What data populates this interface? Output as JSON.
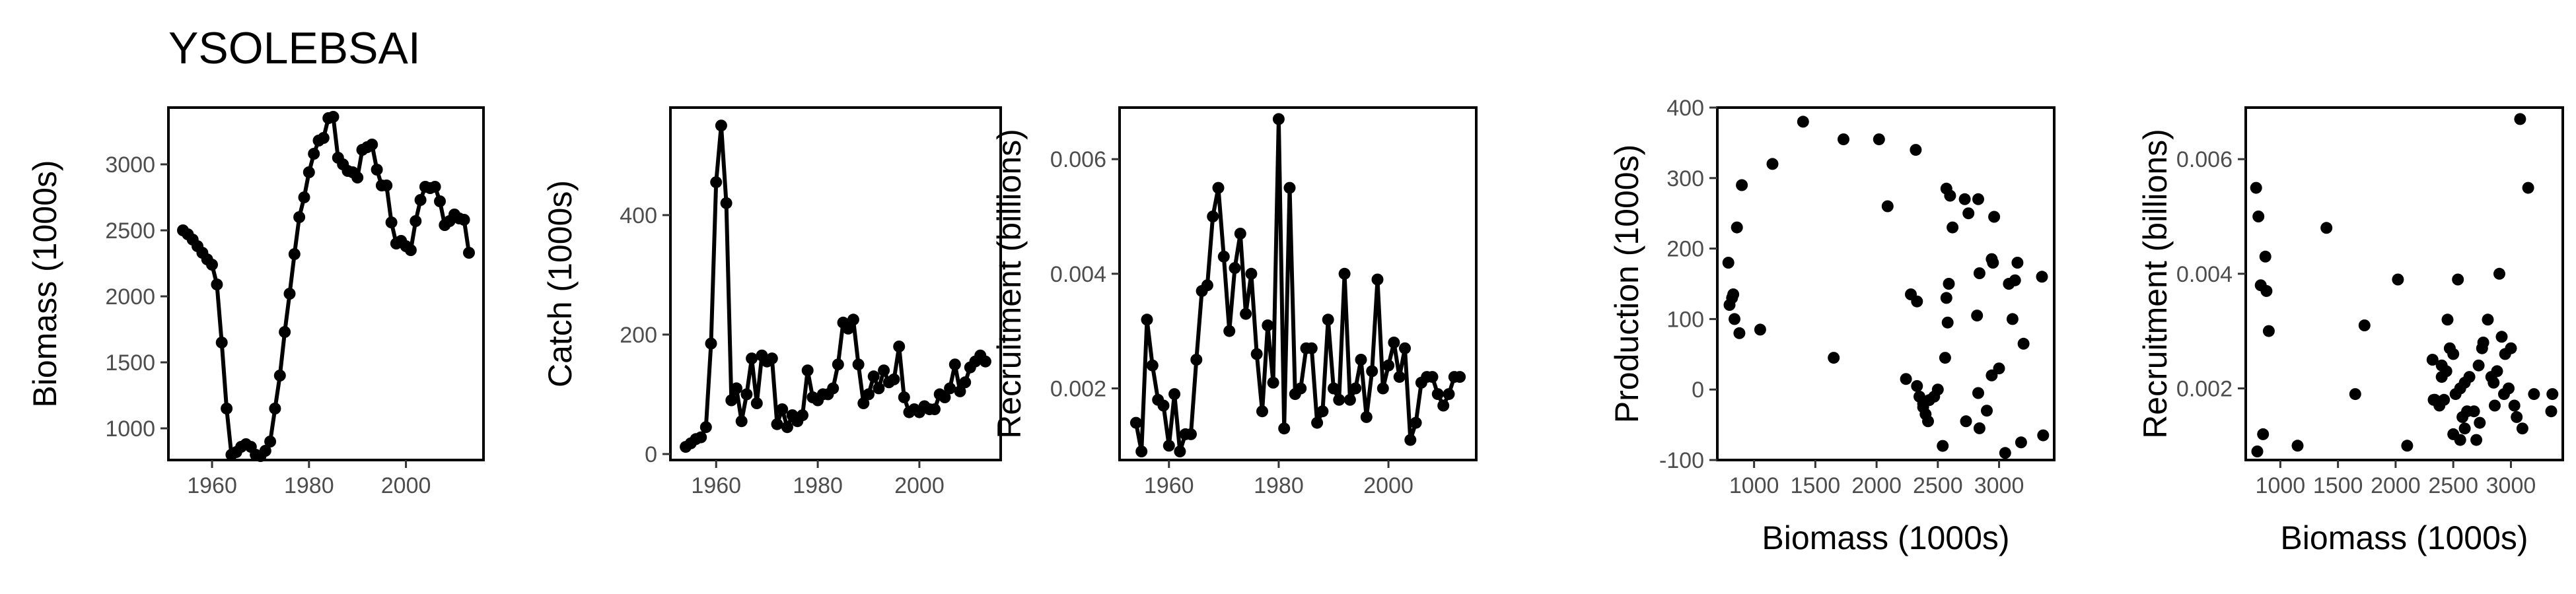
{
  "title": "YSOLEBSAI",
  "chart_data": [
    {
      "type": "line",
      "ylabel": "Biomass (1000s)",
      "xlabel": "",
      "xlim": [
        1951,
        2016
      ],
      "ylim": [
        760,
        3430
      ],
      "xticks": [
        1960,
        1980,
        2000
      ],
      "yticks": [
        1000,
        1500,
        2000,
        2500,
        3000
      ],
      "xticklabels": [
        "1960",
        "1980",
        "2000"
      ],
      "yticklabels": [
        "1000",
        "1500",
        "2000",
        "2500",
        "3000"
      ],
      "x": [
        1954,
        1955,
        1956,
        1957,
        1958,
        1959,
        1960,
        1961,
        1962,
        1963,
        1964,
        1965,
        1966,
        1967,
        1968,
        1969,
        1970,
        1971,
        1972,
        1973,
        1974,
        1975,
        1976,
        1977,
        1978,
        1979,
        1980,
        1981,
        1982,
        1983,
        1984,
        1985,
        1986,
        1987,
        1988,
        1989,
        1990,
        1991,
        1992,
        1993,
        1994,
        1995,
        1996,
        1997,
        1998,
        1999,
        2000,
        2001,
        2002,
        2003,
        2004,
        2005,
        2006,
        2007,
        2008,
        2009,
        2010,
        2011,
        2012,
        2013
      ],
      "y": [
        2500,
        2470,
        2430,
        2380,
        2330,
        2280,
        2240,
        2090,
        1650,
        1150,
        800,
        820,
        860,
        880,
        860,
        800,
        790,
        830,
        900,
        1150,
        1400,
        1730,
        2020,
        2320,
        2600,
        2750,
        2940,
        3080,
        3180,
        3200,
        3350,
        3360,
        3050,
        3000,
        2950,
        2940,
        2900,
        3110,
        3130,
        3150,
        2960,
        2840,
        2840,
        2560,
        2400,
        2420,
        2380,
        2350,
        2570,
        2730,
        2830,
        2820,
        2830,
        2720,
        2540,
        2570,
        2620,
        2590,
        2580,
        2330
      ]
    },
    {
      "type": "line",
      "ylabel": "Catch (1000s)",
      "xlabel": "",
      "xlim": [
        1951,
        2016
      ],
      "ylim": [
        -10,
        580
      ],
      "xticks": [
        1960,
        1980,
        2000
      ],
      "yticks": [
        0,
        200,
        400
      ],
      "xticklabels": [
        "1960",
        "1980",
        "2000"
      ],
      "yticklabels": [
        "0",
        "200",
        "400"
      ],
      "x": [
        1954,
        1955,
        1956,
        1957,
        1958,
        1959,
        1960,
        1961,
        1962,
        1963,
        1964,
        1965,
        1966,
        1967,
        1968,
        1969,
        1970,
        1971,
        1972,
        1973,
        1974,
        1975,
        1976,
        1977,
        1978,
        1979,
        1980,
        1981,
        1982,
        1983,
        1984,
        1985,
        1986,
        1987,
        1988,
        1989,
        1990,
        1991,
        1992,
        1993,
        1994,
        1995,
        1996,
        1997,
        1998,
        1999,
        2000,
        2001,
        2002,
        2003,
        2004,
        2005,
        2006,
        2007,
        2008,
        2009,
        2010,
        2011,
        2012,
        2013
      ],
      "y": [
        12,
        18,
        25,
        28,
        45,
        185,
        455,
        550,
        420,
        90,
        110,
        55,
        100,
        160,
        85,
        165,
        155,
        160,
        50,
        75,
        45,
        65,
        55,
        65,
        140,
        95,
        90,
        100,
        100,
        110,
        150,
        220,
        210,
        225,
        150,
        85,
        100,
        130,
        110,
        140,
        120,
        125,
        180,
        95,
        70,
        75,
        70,
        80,
        75,
        75,
        100,
        95,
        110,
        150,
        105,
        120,
        145,
        155,
        165,
        155
      ]
    },
    {
      "type": "line",
      "ylabel": "Recruitment (billions)",
      "xlabel": "",
      "xlim": [
        1951,
        2016
      ],
      "ylim": [
        0.00075,
        0.0069
      ],
      "xticks": [
        1960,
        1980,
        2000
      ],
      "yticks": [
        0.002,
        0.004,
        0.006
      ],
      "xticklabels": [
        "1960",
        "1980",
        "2000"
      ],
      "yticklabels": [
        "0.002",
        "0.004",
        "0.006"
      ],
      "x": [
        1954,
        1955,
        1956,
        1957,
        1958,
        1959,
        1960,
        1961,
        1962,
        1963,
        1964,
        1965,
        1966,
        1967,
        1968,
        1969,
        1970,
        1971,
        1972,
        1973,
        1974,
        1975,
        1976,
        1977,
        1978,
        1979,
        1980,
        1981,
        1982,
        1983,
        1984,
        1985,
        1986,
        1987,
        1988,
        1989,
        1990,
        1991,
        1992,
        1993,
        1994,
        1995,
        1996,
        1997,
        1998,
        1999,
        2000,
        2001,
        2002,
        2003,
        2004,
        2005,
        2006,
        2007,
        2008,
        2009,
        2010,
        2011,
        2012,
        2013
      ],
      "y": [
        0.0014,
        0.0009,
        0.0032,
        0.0024,
        0.0018,
        0.0017,
        0.001,
        0.0019,
        0.0009,
        0.0012,
        0.0012,
        0.0025,
        0.0037,
        0.0038,
        0.005,
        0.0055,
        0.0043,
        0.003,
        0.0041,
        0.0047,
        0.0033,
        0.004,
        0.0026,
        0.0016,
        0.0031,
        0.0021,
        0.0067,
        0.0013,
        0.0055,
        0.0019,
        0.002,
        0.0027,
        0.0027,
        0.0014,
        0.0016,
        0.0032,
        0.002,
        0.0018,
        0.004,
        0.0018,
        0.002,
        0.0025,
        0.0015,
        0.0023,
        0.0039,
        0.002,
        0.0024,
        0.0028,
        0.0022,
        0.0027,
        0.0011,
        0.0014,
        0.0021,
        0.0022,
        0.0022,
        0.0019,
        0.0017,
        0.0019,
        0.0022,
        0.0022
      ]
    },
    {
      "type": "scatter",
      "ylabel": "Production (1000s)",
      "xlabel": "Biomass (1000s)",
      "xlim": [
        700,
        3450
      ],
      "ylim": [
        -100,
        400
      ],
      "xticks": [
        1000,
        1500,
        2000,
        2500,
        3000
      ],
      "yticks": [
        -100,
        0,
        100,
        200,
        300,
        400
      ],
      "xticklabels": [
        "1000",
        "1500",
        "2000",
        "2500",
        "3000"
      ],
      "yticklabels": [
        "-100",
        "0",
        "100",
        "200",
        "300",
        "400"
      ],
      "x": [
        790,
        800,
        820,
        830,
        840,
        860,
        880,
        900,
        1050,
        1150,
        1400,
        1650,
        1730,
        2020,
        2320,
        2600,
        2750,
        2940,
        3080,
        3180,
        3200,
        3350,
        3360,
        3050,
        3000,
        2950,
        2940,
        2900,
        3110,
        3130,
        3150,
        2960,
        2840,
        2840,
        2560,
        2400,
        2420,
        2380,
        2350,
        2570,
        2730,
        2830,
        2820,
        2830,
        2720,
        2540,
        2570,
        2620,
        2590,
        2580,
        2330,
        2500,
        2470,
        2430,
        2380,
        2330,
        2280,
        2240,
        2090
      ],
      "y": [
        180,
        120,
        130,
        135,
        100,
        230,
        80,
        290,
        85,
        320,
        380,
        45,
        355,
        355,
        340,
        275,
        250,
        185,
        150,
        -75,
        65,
        160,
        -65,
        -90,
        30,
        180,
        20,
        -30,
        100,
        155,
        180,
        245,
        -55,
        165,
        45,
        -35,
        -45,
        -20,
        -10,
        130,
        -45,
        -5,
        105,
        270,
        270,
        -80,
        285,
        230,
        150,
        95,
        5,
        0,
        -10,
        -15,
        -25,
        125,
        135,
        15,
        260
      ]
    },
    {
      "type": "scatter",
      "ylabel": "Recruitment (billions)",
      "xlabel": "Biomass (1000s)",
      "xlim": [
        700,
        3450
      ],
      "ylim": [
        0.00075,
        0.0069
      ],
      "xticks": [
        1000,
        1500,
        2000,
        2500,
        3000
      ],
      "yticks": [
        0.002,
        0.004,
        0.006
      ],
      "xticklabels": [
        "1000",
        "1500",
        "2000",
        "2500",
        "3000"
      ],
      "yticklabels": [
        "0.002",
        "0.004",
        "0.006"
      ],
      "x": [
        790,
        800,
        810,
        830,
        850,
        870,
        880,
        900,
        1150,
        1400,
        1650,
        1730,
        2020,
        2100,
        2320,
        2380,
        2400,
        2420,
        2450,
        2500,
        2540,
        2560,
        2580,
        2600,
        2620,
        2700,
        2730,
        2750,
        2800,
        2830,
        2850,
        2900,
        2940,
        2950,
        3000,
        3050,
        3080,
        3100,
        3150,
        3200,
        3350,
        3360,
        2330,
        2400,
        2470,
        2520,
        2560,
        2600,
        2680,
        2760,
        2880,
        2980,
        3030,
        2860,
        2640,
        2440,
        2340,
        2720,
        2920,
        2500
      ],
      "y": [
        0.0055,
        0.0009,
        0.005,
        0.0038,
        0.0012,
        0.0043,
        0.0037,
        0.003,
        0.001,
        0.0048,
        0.0019,
        0.0031,
        0.0039,
        0.001,
        0.0025,
        0.0017,
        0.0022,
        0.0018,
        0.0032,
        0.0026,
        0.0039,
        0.002,
        0.0015,
        0.0021,
        0.0016,
        0.0011,
        0.0014,
        0.0027,
        0.0032,
        0.0022,
        0.0021,
        0.004,
        0.0019,
        0.0026,
        0.0027,
        0.0015,
        0.0067,
        0.0013,
        0.0055,
        0.0019,
        0.0016,
        0.0019,
        0.0018,
        0.0024,
        0.0027,
        0.0019,
        0.0011,
        0.0013,
        0.0016,
        0.0028,
        0.0023,
        0.002,
        0.0017,
        0.0017,
        0.0022,
        0.0023,
        0.0018,
        0.0024,
        0.0029,
        0.0012
      ]
    }
  ]
}
